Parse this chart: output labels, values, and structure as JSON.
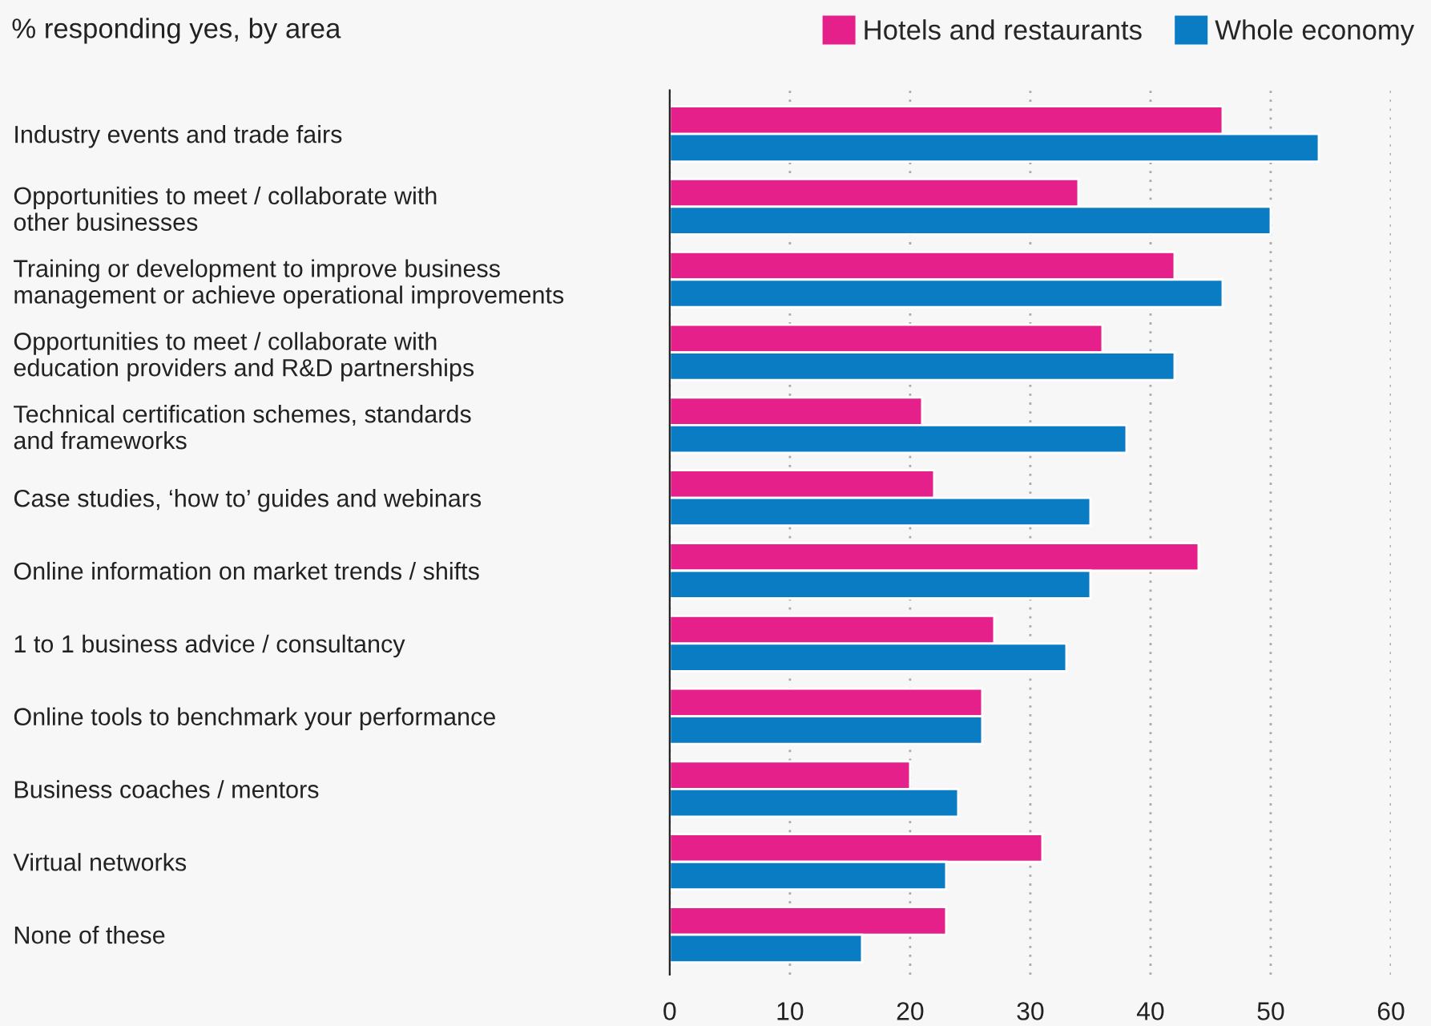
{
  "chart_data": {
    "type": "bar",
    "orientation": "horizontal",
    "title": "% responding yes, by area",
    "categories": [
      "Industry events and trade fairs",
      "Opportunities to meet / collaborate with\nother businesses",
      "Training or development to improve business\nmanagement or achieve operational improvements",
      "Opportunities to meet / collaborate with\neducation providers and R&D partnerships",
      "Technical certification schemes, standards\nand frameworks",
      "Case studies, ‘how to’ guides and webinars",
      "Online information on market trends / shifts",
      "1 to 1 business advice / consultancy",
      "Online tools to benchmark your performance",
      "Business coaches / mentors",
      "Virtual networks",
      "None of these"
    ],
    "series": [
      {
        "name": "Hotels and restaurants",
        "color": "#e5208a",
        "values": [
          46,
          34,
          42,
          36,
          21,
          22,
          44,
          27,
          26,
          20,
          31,
          23
        ]
      },
      {
        "name": "Whole economy",
        "color": "#0a7cc4",
        "values": [
          54,
          50,
          46,
          42,
          38,
          35,
          35,
          33,
          26,
          24,
          23,
          16
        ]
      }
    ],
    "xlim": [
      0,
      60
    ],
    "xticks": [
      0,
      10,
      20,
      30,
      40,
      50,
      60
    ],
    "grid": "x",
    "legend": "top right"
  }
}
